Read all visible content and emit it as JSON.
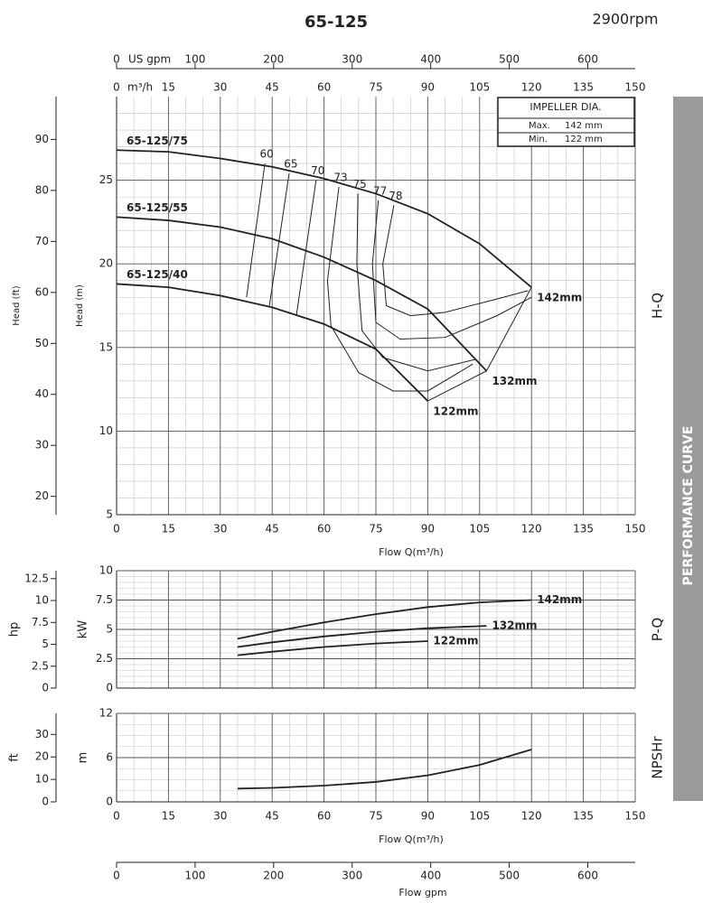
{
  "header": {
    "title": "65-125",
    "speed": "2900rpm"
  },
  "side_label": "PERFORMANCE CURVE",
  "impeller_box": {
    "title": "IMPELLER DIA.",
    "rows": [
      [
        "Max.",
        "142 mm"
      ],
      [
        "Min.",
        "122 mm"
      ]
    ]
  },
  "chart_data": [
    {
      "type": "line",
      "side_title": "H-Q",
      "color": "#222222",
      "grid": true,
      "xlabel": "Flow Q(m³/h)",
      "xlabel_top": "m³/h",
      "x2label": "US gpm",
      "ylabel": "Head (m)",
      "y2label": "Head (ft)",
      "xlim": [
        0,
        150
      ],
      "xticks": [
        0,
        15,
        30,
        45,
        60,
        75,
        90,
        105,
        120,
        135,
        150
      ],
      "x2lim": [
        0,
        660.4
      ],
      "x2ticks": [
        0,
        100,
        200,
        300,
        400,
        500,
        600
      ],
      "ylim": [
        5,
        30
      ],
      "yticks": [
        5,
        10,
        15,
        20,
        25
      ],
      "y2lim": [
        16.4,
        98.4
      ],
      "y2ticks": [
        20,
        30,
        40,
        50,
        60,
        70,
        80,
        90
      ],
      "series": [
        {
          "name": "142mm",
          "model": "65-125/75",
          "x": [
            0,
            15,
            30,
            45,
            60,
            75,
            90,
            105,
            120
          ],
          "values": [
            26.8,
            26.7,
            26.3,
            25.8,
            25.1,
            24.2,
            23.0,
            21.2,
            18.6
          ]
        },
        {
          "name": "132mm",
          "model": "65-125/55",
          "x": [
            0,
            15,
            30,
            45,
            60,
            75,
            90,
            107
          ],
          "values": [
            22.8,
            22.6,
            22.2,
            21.5,
            20.4,
            19.0,
            17.3,
            13.6
          ]
        },
        {
          "name": "122mm",
          "model": "65-125/40",
          "x": [
            0,
            15,
            30,
            45,
            60,
            75,
            90
          ],
          "values": [
            18.8,
            18.6,
            18.1,
            17.4,
            16.4,
            14.9,
            11.8
          ]
        }
      ],
      "efficiency": [
        {
          "label": 60,
          "x": [
            42.9,
            37.6
          ],
          "values": [
            26.0,
            18.0
          ]
        },
        {
          "label": 65,
          "x": [
            49.9,
            44.2
          ],
          "values": [
            25.4,
            17.5
          ]
        },
        {
          "label": 70,
          "x": [
            57.7,
            52
          ],
          "values": [
            25.0,
            16.9
          ]
        },
        {
          "label": 73,
          "x": [
            64.3,
            61,
            62,
            70,
            80,
            90,
            103
          ],
          "values": [
            24.6,
            19,
            16.3,
            13.5,
            12.4,
            12.4,
            14.0
          ]
        },
        {
          "label": 75,
          "x": [
            69.8,
            69.5,
            71,
            77,
            90,
            104
          ],
          "values": [
            24.2,
            20,
            16,
            14.4,
            13.6,
            14.3
          ]
        },
        {
          "label": 77,
          "x": [
            75.7,
            74,
            75,
            82,
            95,
            110,
            120
          ],
          "values": [
            23.8,
            20,
            16.5,
            15.5,
            15.6,
            16.9,
            18.0
          ]
        },
        {
          "label": 78,
          "x": [
            80.2,
            77,
            78,
            85,
            95,
            110,
            119
          ],
          "values": [
            23.5,
            20,
            17.5,
            16.9,
            17.1,
            17.9,
            18.4
          ]
        }
      ]
    },
    {
      "type": "line",
      "side_title": "P-Q",
      "color": "#222222",
      "grid": true,
      "ylabel": "kW",
      "y2label": "hp",
      "xlim": [
        0,
        150
      ],
      "xticks": [
        0,
        15,
        30,
        45,
        60,
        75,
        90,
        105,
        120,
        135,
        150
      ],
      "ylim": [
        0,
        10
      ],
      "yticks": [
        0,
        2.5,
        5,
        7.5,
        10
      ],
      "y2lim": [
        0,
        13.41
      ],
      "y2ticks": [
        0,
        2.5,
        5,
        7.5,
        10,
        12.5
      ],
      "series": [
        {
          "name": "142mm",
          "x": [
            35,
            45,
            60,
            75,
            90,
            105,
            120
          ],
          "values": [
            4.2,
            4.8,
            5.6,
            6.3,
            6.9,
            7.3,
            7.5
          ]
        },
        {
          "name": "132mm",
          "x": [
            35,
            45,
            60,
            75,
            90,
            107
          ],
          "values": [
            3.5,
            3.9,
            4.4,
            4.8,
            5.1,
            5.3
          ]
        },
        {
          "name": "122mm",
          "x": [
            35,
            45,
            60,
            75,
            90
          ],
          "values": [
            2.8,
            3.1,
            3.5,
            3.8,
            4.0
          ]
        }
      ]
    },
    {
      "type": "line",
      "side_title": "NPSHr",
      "color": "#222222",
      "grid": true,
      "xlabel": "Flow Q(m³/h)",
      "x2label": "Flow gpm",
      "ylabel": "m",
      "y2label": "ft",
      "xlim": [
        0,
        150
      ],
      "xticks": [
        0,
        15,
        30,
        45,
        60,
        75,
        90,
        105,
        120,
        135,
        150
      ],
      "x2lim": [
        0,
        660.4
      ],
      "x2ticks": [
        0,
        100,
        200,
        300,
        400,
        500,
        600
      ],
      "ylim": [
        0,
        12
      ],
      "yticks": [
        0,
        6,
        12
      ],
      "y2lim": [
        0,
        39.37
      ],
      "y2ticks": [
        0,
        10,
        20,
        30
      ],
      "series": [
        {
          "x": [
            35,
            45,
            60,
            75,
            90,
            105,
            120
          ],
          "values": [
            1.8,
            1.9,
            2.2,
            2.7,
            3.6,
            5.0,
            7.1
          ]
        }
      ]
    }
  ]
}
